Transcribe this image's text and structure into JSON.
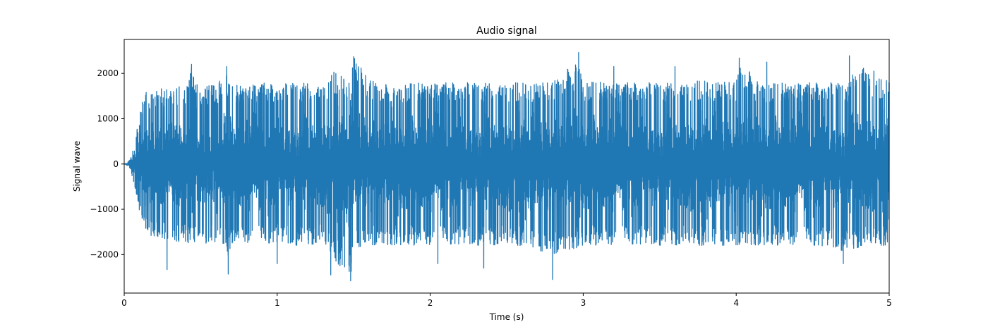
{
  "chart_data": {
    "type": "line",
    "title": "Audio signal",
    "xlabel": "Time (s)",
    "ylabel": "Signal wave",
    "xlim": [
      0,
      5
    ],
    "ylim": [
      -2850,
      2750
    ],
    "xticks": [
      0,
      1,
      2,
      3,
      4,
      5
    ],
    "xtick_labels": [
      "0",
      "1",
      "2",
      "3",
      "4",
      "5"
    ],
    "yticks": [
      -2000,
      -1000,
      0,
      1000,
      2000
    ],
    "ytick_labels": [
      "−2000",
      "−1000",
      "0",
      "1000",
      "2000"
    ],
    "grid": false,
    "series": [
      {
        "color": "#1f77b4",
        "envelope": {
          "x": [
            0,
            0.02,
            0.04,
            0.06,
            0.08,
            0.1,
            0.12,
            0.14,
            0.2,
            0.28,
            0.4,
            0.44,
            0.5,
            0.6,
            0.67,
            0.68,
            0.7,
            0.8,
            0.9,
            1.0,
            1.1,
            1.2,
            1.3,
            1.36,
            1.48,
            1.5,
            1.6,
            1.8,
            2.0,
            2.2,
            2.4,
            2.6,
            2.8,
            2.97,
            3.0,
            3.2,
            3.4,
            3.6,
            3.8,
            4.0,
            4.02,
            4.2,
            4.4,
            4.6,
            4.74,
            4.8,
            4.9,
            5.0
          ],
          "peak": [
            0,
            30,
            100,
            400,
            700,
            1100,
            1400,
            1600,
            1650,
            1700,
            1750,
            2200,
            1700,
            1750,
            2000,
            1800,
            1750,
            1750,
            1800,
            1750,
            1800,
            1800,
            1750,
            2050,
            1850,
            2400,
            1850,
            1800,
            1800,
            1800,
            1800,
            1800,
            1800,
            2450,
            1850,
            1800,
            1800,
            1800,
            1850,
            1800,
            2300,
            1800,
            1800,
            1800,
            1800,
            2350,
            1900,
            1850
          ],
          "trough": [
            0,
            -30,
            -100,
            -400,
            -700,
            -1100,
            -1400,
            -1600,
            -1650,
            -1700,
            -1750,
            -1750,
            -1750,
            -1750,
            -1800,
            -2400,
            -1750,
            -1750,
            -1800,
            -1750,
            -1800,
            -1800,
            -1750,
            -2050,
            -2550,
            -1850,
            -1800,
            -1800,
            -1800,
            -1800,
            -1800,
            -1800,
            -2000,
            -1850,
            -1800,
            -1800,
            -1800,
            -1800,
            -1800,
            -1800,
            -1800,
            -1800,
            -1800,
            -1850,
            -1950,
            -1850,
            -1800,
            -1800
          ]
        },
        "typical_fraction": 0.45,
        "samples_per_second": 2400,
        "spikes": [
          {
            "x": 0.28,
            "y": -2330
          },
          {
            "x": 0.44,
            "y": 2200
          },
          {
            "x": 0.67,
            "y": 2150
          },
          {
            "x": 0.68,
            "y": -2430
          },
          {
            "x": 1.0,
            "y": -2200
          },
          {
            "x": 1.35,
            "y": -2450
          },
          {
            "x": 1.48,
            "y": -2580
          },
          {
            "x": 1.5,
            "y": 2370
          },
          {
            "x": 2.05,
            "y": -2200
          },
          {
            "x": 2.35,
            "y": -2300
          },
          {
            "x": 2.8,
            "y": -2550
          },
          {
            "x": 2.97,
            "y": 2460
          },
          {
            "x": 3.2,
            "y": 2150
          },
          {
            "x": 3.6,
            "y": 2150
          },
          {
            "x": 4.02,
            "y": 2340
          },
          {
            "x": 4.2,
            "y": 2250
          },
          {
            "x": 4.7,
            "y": -2200
          },
          {
            "x": 4.74,
            "y": 2390
          },
          {
            "x": 4.9,
            "y": 2050
          }
        ]
      }
    ]
  }
}
